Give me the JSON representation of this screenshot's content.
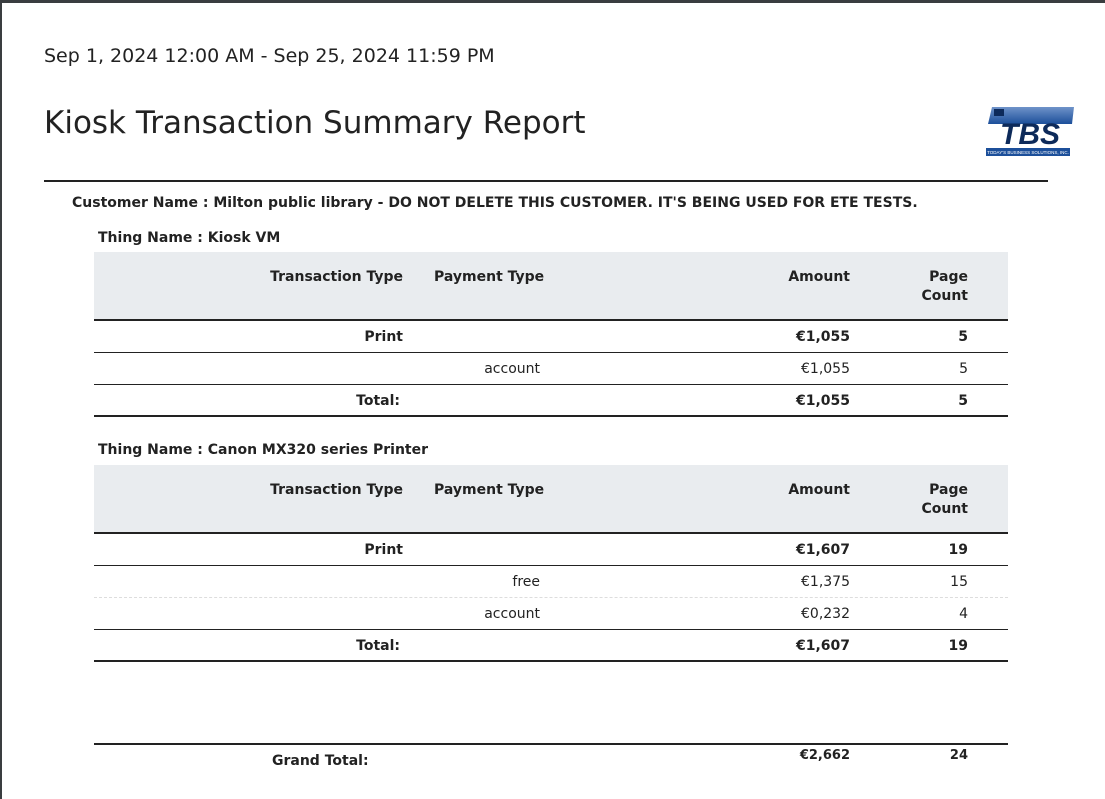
{
  "date_range": "Sep 1, 2024 12:00 AM - Sep 25, 2024 11:59 PM",
  "title": "Kiosk Transaction Summary Report",
  "logo": {
    "text": "TBS",
    "tagline": "TODAY'S BUSINESS SOLUTIONS, INC.",
    "color": "#1c3f78"
  },
  "customer": "Customer Name : Milton public library - DO NOT DELETE THIS CUSTOMER. IT'S BEING USED FOR ETE TESTS.",
  "headers": {
    "transaction_type": "Transaction Type",
    "payment_type": "Payment Type",
    "amount": "Amount",
    "page_count_1": "Page",
    "page_count_2": "Count"
  },
  "things": [
    {
      "name": "Thing Name : Kiosk VM",
      "group": {
        "type": "Print",
        "amount": "€1,055",
        "pages": "5"
      },
      "rows": [
        {
          "payment": "account",
          "amount": "€1,055",
          "pages": "5"
        }
      ],
      "total": {
        "label": "Total:",
        "amount": "€1,055",
        "pages": "5"
      }
    },
    {
      "name": "Thing Name : Canon MX320 series Printer",
      "group": {
        "type": "Print",
        "amount": "€1,607",
        "pages": "19"
      },
      "rows": [
        {
          "payment": "free",
          "amount": "€1,375",
          "pages": "15"
        },
        {
          "payment": "account",
          "amount": "€0,232",
          "pages": "4"
        }
      ],
      "total": {
        "label": "Total:",
        "amount": "€1,607",
        "pages": "19"
      }
    }
  ],
  "grand_total": {
    "label": "Grand Total:",
    "amount": "€2,662",
    "pages": "24"
  }
}
